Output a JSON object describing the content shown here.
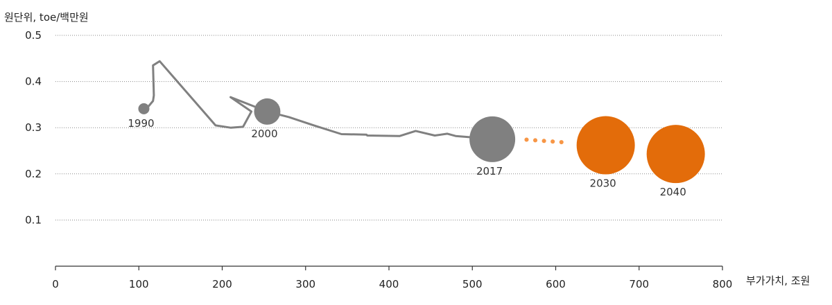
{
  "chart_data": {
    "type": "scatter",
    "ylabel": "원단위, toe/백만원",
    "xlabel": "부가가치, 조원",
    "xlim": [
      0,
      800
    ],
    "ylim": [
      0,
      0.5
    ],
    "x_ticks": [
      "0",
      "100",
      "200",
      "300",
      "400",
      "500",
      "600",
      "700",
      "800"
    ],
    "y_ticks": [
      "0.1",
      "0.2",
      "0.3",
      "0.4",
      "0.5"
    ],
    "grid": "horizontal-dotted",
    "colors": {
      "historical": "#808080",
      "projection": "#E36C0A",
      "projection_dots": "#F79646",
      "grid": "#888888",
      "axis": "#333333"
    },
    "trajectory": [
      {
        "x": 106,
        "y": 0.341
      },
      {
        "x": 110,
        "y": 0.343
      },
      {
        "x": 117,
        "y": 0.358
      },
      {
        "x": 118,
        "y": 0.37
      },
      {
        "x": 117,
        "y": 0.435
      },
      {
        "x": 125,
        "y": 0.444
      },
      {
        "x": 192,
        "y": 0.305
      },
      {
        "x": 210,
        "y": 0.3
      },
      {
        "x": 225,
        "y": 0.302
      },
      {
        "x": 235,
        "y": 0.335
      },
      {
        "x": 210,
        "y": 0.366
      },
      {
        "x": 254,
        "y": 0.335
      },
      {
        "x": 280,
        "y": 0.323
      },
      {
        "x": 310,
        "y": 0.305
      },
      {
        "x": 343,
        "y": 0.286
      },
      {
        "x": 373,
        "y": 0.285
      },
      {
        "x": 374,
        "y": 0.283
      },
      {
        "x": 413,
        "y": 0.282
      },
      {
        "x": 432,
        "y": 0.293
      },
      {
        "x": 455,
        "y": 0.283
      },
      {
        "x": 470,
        "y": 0.287
      },
      {
        "x": 480,
        "y": 0.282
      },
      {
        "x": 493,
        "y": 0.28
      },
      {
        "x": 524,
        "y": 0.275
      }
    ],
    "projection_path": [
      {
        "x": 565,
        "y": 0.274
      },
      {
        "x": 612,
        "y": 0.268
      }
    ],
    "milestones": [
      {
        "label": "1990",
        "x": 106,
        "y": 0.341,
        "size": 8,
        "series": "historical",
        "label_pos": "below"
      },
      {
        "label": "2000",
        "x": 254,
        "y": 0.335,
        "size": 19,
        "series": "historical",
        "label_pos": "below"
      },
      {
        "label": "2017",
        "x": 524,
        "y": 0.275,
        "size": 33,
        "series": "historical",
        "label_pos": "below"
      },
      {
        "label": "2030",
        "x": 660,
        "y": 0.262,
        "size": 42,
        "series": "projection",
        "label_pos": "below"
      },
      {
        "label": "2040",
        "x": 744,
        "y": 0.243,
        "size": 42,
        "series": "projection",
        "label_pos": "below"
      }
    ]
  }
}
